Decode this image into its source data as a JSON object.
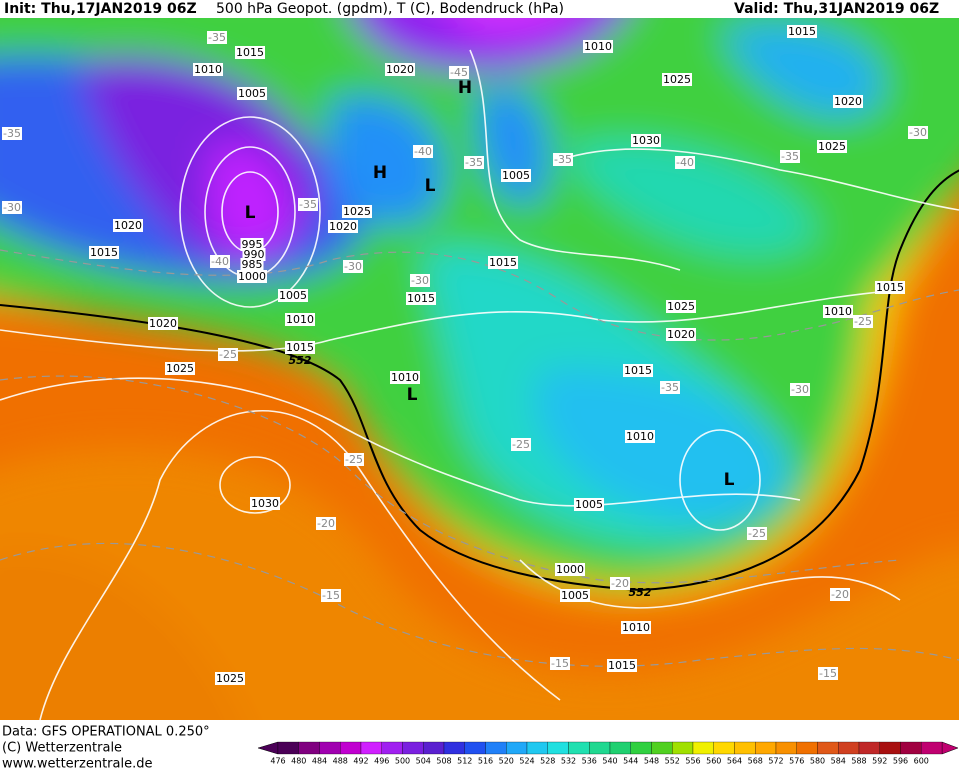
{
  "header": {
    "init": "Init: Thu,17JAN2019 06Z",
    "title": "500 hPa Geopot. (gpdm), T (C), Bodendruck (hPa)",
    "valid": "Valid: Thu,31JAN2019 06Z"
  },
  "footer": {
    "data": "Data: GFS OPERATIONAL 0.250°",
    "copyright": "(C) Wetterzentrale",
    "url": "www.wetterzentrale.de"
  },
  "map": {
    "isobars": [
      1015,
      1010,
      1005,
      1020,
      1010,
      1025,
      1015,
      1020,
      1025,
      1030,
      1005,
      1025,
      1020,
      1020,
      1015,
      1015,
      1015,
      1005,
      1010,
      1015,
      1020,
      1025,
      1010,
      1025,
      1020,
      1015,
      1010,
      1005,
      1000,
      1005,
      1010,
      1015,
      1030,
      1025,
      1015,
      1010,
      995,
      990,
      985,
      1000
    ],
    "temperatures": [
      -35,
      -45,
      -35,
      -30,
      -40,
      -35,
      -40,
      -35,
      -35,
      -40,
      -35,
      -30,
      -30,
      -30,
      -25,
      -25,
      -30,
      -35,
      -25,
      -25,
      -20,
      -25,
      -20,
      -20,
      -15,
      -15,
      -15
    ],
    "heights": [
      552,
      552
    ],
    "pressure_centers": [
      "L",
      "H",
      "H",
      "L",
      "L",
      "L"
    ]
  },
  "scale": {
    "values": [
      476,
      480,
      484,
      488,
      492,
      496,
      500,
      504,
      508,
      512,
      516,
      520,
      524,
      528,
      532,
      536,
      540,
      544,
      548,
      552,
      556,
      560,
      564,
      568,
      572,
      576,
      580,
      584,
      588,
      592,
      596,
      600
    ],
    "colors": [
      "#4b0057",
      "#800080",
      "#a000b0",
      "#c000d0",
      "#d020ff",
      "#a020f0",
      "#7a20e0",
      "#5a20d0",
      "#3030e0",
      "#2050f0",
      "#2080f8",
      "#20a8f8",
      "#20c8f0",
      "#20e0e0",
      "#20e0b0",
      "#20d890",
      "#20d070",
      "#30d040",
      "#50d020",
      "#a0e000",
      "#f0f000",
      "#ffd800",
      "#ffc000",
      "#ffa800",
      "#f89000",
      "#f07000",
      "#e05818",
      "#d04020",
      "#c02828",
      "#a81010",
      "#a00040",
      "#c00070"
    ]
  }
}
